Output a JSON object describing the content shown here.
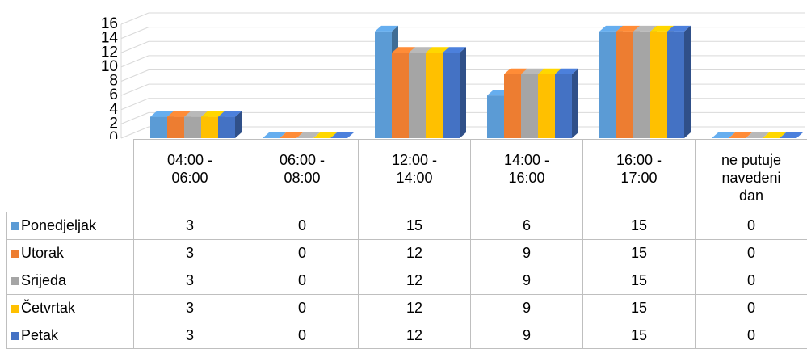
{
  "chart_data": {
    "type": "bar",
    "categories": [
      "04:00 - 06:00",
      "06:00 - 08:00",
      "12:00 - 14:00",
      "14:00 - 16:00",
      "16:00 - 17:00",
      "ne putuje navedeni dan"
    ],
    "series": [
      {
        "name": "Ponedjeljak",
        "color": "#5b9bd5",
        "values": [
          3,
          0,
          15,
          6,
          15,
          0
        ]
      },
      {
        "name": "Utorak",
        "color": "#ed7d31",
        "values": [
          3,
          0,
          12,
          9,
          15,
          0
        ]
      },
      {
        "name": "Srijeda",
        "color": "#a5a5a5",
        "values": [
          3,
          0,
          12,
          9,
          15,
          0
        ]
      },
      {
        "name": "Četvrtak",
        "color": "#ffc000",
        "values": [
          3,
          0,
          12,
          9,
          15,
          0
        ]
      },
      {
        "name": "Petak",
        "color": "#4472c4",
        "values": [
          3,
          0,
          12,
          9,
          15,
          0
        ]
      }
    ],
    "ylim": [
      0,
      16
    ],
    "yticks": [
      0,
      2,
      4,
      6,
      8,
      10,
      12,
      14,
      16
    ],
    "grid": true
  }
}
